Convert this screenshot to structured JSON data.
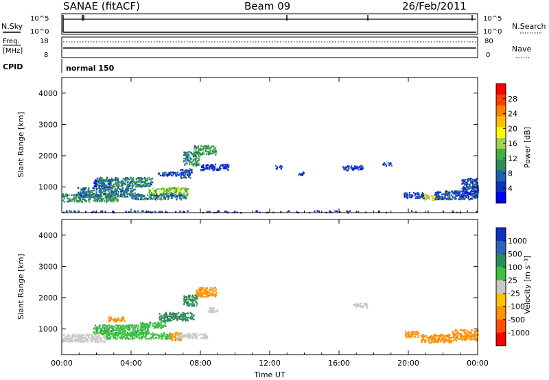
{
  "header": {
    "station": "SANAE (fitACF)",
    "beam": "Beam 09",
    "date": "26/Feb/2011"
  },
  "noise_panel": {
    "left_label": "N.Sky",
    "right_label": "N.Search",
    "left_ticks": [
      "10^5",
      "10^0"
    ],
    "right_ticks": [
      "10^5",
      "10^0"
    ]
  },
  "freq_panel": {
    "left_label_1": "Freq.",
    "left_label_2": "[MHz]",
    "right_label": "Nave",
    "left_ticks": [
      "18",
      "8"
    ],
    "right_ticks": [
      "80",
      "0"
    ]
  },
  "cpid": {
    "label": "CPID",
    "mode": "normal 150"
  },
  "power_colorbar": {
    "label": "Power [dB]",
    "ticks": [
      "28",
      "24",
      "20",
      "16",
      "12",
      "8",
      "4"
    ],
    "colors": [
      "#ff0000",
      "#ff4000",
      "#ff8000",
      "#ffbf00",
      "#ffff00",
      "#a0d050",
      "#40b040",
      "#2e8b57",
      "#1f5fae",
      "#1030c0",
      "#0000ff"
    ]
  },
  "velocity_colorbar": {
    "label": "Velocity [m s⁻¹]",
    "ticks": [
      "1000",
      "500",
      "100",
      "25",
      "-25",
      "-100",
      "-500",
      "-1000"
    ],
    "colors": [
      "#1030c0",
      "#2f62b8",
      "#2e8b57",
      "#40c040",
      "#c8c8c8",
      "#ffc000",
      "#ff9000",
      "#ff5000",
      "#ff0000"
    ]
  },
  "chart_data": [
    {
      "type": "heatmap",
      "title": "Power",
      "xlabel": "",
      "ylabel": "Slant Range [km]",
      "xlim": [
        0,
        24
      ],
      "ylim": [
        180,
        4500
      ],
      "x_ticks": [
        0,
        4,
        8,
        12,
        16,
        20,
        24
      ],
      "y_ticks": [
        1000,
        2000,
        3000,
        4000
      ],
      "value_unit": "dB",
      "features": [
        {
          "x0": 0.0,
          "x1": 3.2,
          "y0": 540,
          "y1": 800,
          "value": 10
        },
        {
          "x0": 0.9,
          "x1": 4.2,
          "y0": 700,
          "y1": 1000,
          "value": 8
        },
        {
          "x0": 1.8,
          "x1": 2.8,
          "y0": 1000,
          "y1": 1250,
          "value": 4
        },
        {
          "x0": 2.0,
          "x1": 5.2,
          "y0": 1030,
          "y1": 1330,
          "value": 9
        },
        {
          "x0": 5.0,
          "x1": 7.3,
          "y0": 780,
          "y1": 1000,
          "value": 14
        },
        {
          "x0": 4.0,
          "x1": 7.2,
          "y0": 620,
          "y1": 800,
          "value": 8
        },
        {
          "x0": 5.5,
          "x1": 6.8,
          "y0": 1380,
          "y1": 1500,
          "value": 5
        },
        {
          "x0": 6.8,
          "x1": 7.5,
          "y0": 1300,
          "y1": 1600,
          "value": 6
        },
        {
          "x0": 7.0,
          "x1": 7.9,
          "y0": 1700,
          "y1": 2150,
          "value": 9
        },
        {
          "x0": 7.6,
          "x1": 8.9,
          "y0": 2050,
          "y1": 2350,
          "value": 11
        },
        {
          "x0": 8.0,
          "x1": 9.6,
          "y0": 1550,
          "y1": 1750,
          "value": 4
        },
        {
          "x0": 12.3,
          "x1": 12.7,
          "y0": 1600,
          "y1": 1700,
          "value": 4
        },
        {
          "x0": 13.6,
          "x1": 14.0,
          "y0": 1400,
          "y1": 1500,
          "value": 4
        },
        {
          "x0": 16.2,
          "x1": 17.4,
          "y0": 1550,
          "y1": 1700,
          "value": 4
        },
        {
          "x0": 18.5,
          "x1": 19.0,
          "y0": 1700,
          "y1": 1800,
          "value": 4
        },
        {
          "x0": 19.7,
          "x1": 21.0,
          "y0": 650,
          "y1": 850,
          "value": 5
        },
        {
          "x0": 20.9,
          "x1": 21.6,
          "y0": 600,
          "y1": 800,
          "value": 18
        },
        {
          "x0": 21.5,
          "x1": 24.0,
          "y0": 620,
          "y1": 900,
          "value": 6
        },
        {
          "x0": 23.0,
          "x1": 24.0,
          "y0": 700,
          "y1": 1300,
          "value": 5
        },
        {
          "x0": 0.0,
          "x1": 24.0,
          "y0": 200,
          "y1": 260,
          "value": 4
        }
      ]
    },
    {
      "type": "heatmap",
      "title": "Velocity",
      "xlabel": "Time UT",
      "ylabel": "Slant Range [km]",
      "xlim": [
        0,
        24
      ],
      "ylim": [
        180,
        4500
      ],
      "x_ticks": [
        0,
        4,
        8,
        12,
        16,
        20,
        24
      ],
      "x_tick_labels": [
        "00:00",
        "04:00",
        "08:00",
        "12:00",
        "16:00",
        "20:00",
        "00:00"
      ],
      "y_ticks": [
        1000,
        2000,
        3000,
        4000
      ],
      "value_unit": "m s-1",
      "features": [
        {
          "x0": 0.0,
          "x1": 2.5,
          "y0": 600,
          "y1": 850,
          "value": 0
        },
        {
          "x0": 1.8,
          "x1": 5.0,
          "y0": 850,
          "y1": 1150,
          "value": 80
        },
        {
          "x0": 2.5,
          "x1": 6.3,
          "y0": 700,
          "y1": 900,
          "value": 60
        },
        {
          "x0": 4.5,
          "x1": 6.0,
          "y0": 1050,
          "y1": 1250,
          "value": 60
        },
        {
          "x0": 6.2,
          "x1": 6.9,
          "y0": 650,
          "y1": 900,
          "value": -150
        },
        {
          "x0": 6.6,
          "x1": 8.4,
          "y0": 720,
          "y1": 880,
          "value": 0
        },
        {
          "x0": 2.6,
          "x1": 3.6,
          "y0": 1250,
          "y1": 1400,
          "value": -200
        },
        {
          "x0": 5.6,
          "x1": 7.6,
          "y0": 1280,
          "y1": 1550,
          "value": 300
        },
        {
          "x0": 7.0,
          "x1": 7.8,
          "y0": 1750,
          "y1": 2100,
          "value": 300
        },
        {
          "x0": 7.7,
          "x1": 8.9,
          "y0": 2050,
          "y1": 2350,
          "value": -200
        },
        {
          "x0": 8.4,
          "x1": 9.0,
          "y0": 1550,
          "y1": 1700,
          "value": 0
        },
        {
          "x0": 16.8,
          "x1": 17.6,
          "y0": 1700,
          "y1": 1850,
          "value": 0
        },
        {
          "x0": 19.8,
          "x1": 20.6,
          "y0": 750,
          "y1": 950,
          "value": -200
        },
        {
          "x0": 20.7,
          "x1": 22.5,
          "y0": 580,
          "y1": 850,
          "value": -300
        },
        {
          "x0": 22.5,
          "x1": 24.0,
          "y0": 650,
          "y1": 1000,
          "value": -200
        }
      ]
    }
  ],
  "axis_tick_labels": {
    "time": [
      "00:00",
      "04:00",
      "08:00",
      "12:00",
      "16:00",
      "20:00",
      "00:00"
    ],
    "range": [
      "1000",
      "2000",
      "3000",
      "4000"
    ],
    "time_label": "Time UT",
    "range_label": "Slant Range [km]"
  }
}
